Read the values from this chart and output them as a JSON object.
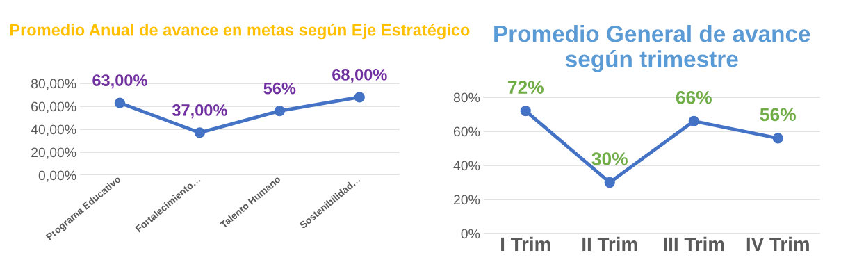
{
  "chart_data": [
    {
      "type": "line",
      "title": "Promedio Anual de avance en metas según Eje Estratégico",
      "categories": [
        "Programa Educativo",
        "Fortalecimiento…",
        "Talento Humano",
        "Sostenibilidad…"
      ],
      "series": [
        {
          "color": "#4472c4",
          "values": [
            63,
            37,
            56,
            68
          ],
          "value_labels": [
            "63,00%",
            "37,00%",
            "56%",
            "68,00%"
          ]
        }
      ],
      "ylim": [
        0,
        80
      ],
      "yticks": [
        {
          "value": 0,
          "label": "0,00%"
        },
        {
          "value": 20,
          "label": "20,00%"
        },
        {
          "value": 40,
          "label": "40,00%"
        },
        {
          "value": 60,
          "label": "60,00%"
        },
        {
          "value": 80,
          "label": "80,00%"
        }
      ],
      "grid": "y",
      "marker": "circle",
      "line_style": "solid"
    },
    {
      "type": "line",
      "title": "Promedio General de avance según trimestre",
      "categories": [
        "I Trim",
        "II Trim",
        "III Trim",
        "IV Trim"
      ],
      "series": [
        {
          "color": "#4472c4",
          "values": [
            72,
            30,
            66,
            56
          ],
          "value_labels": [
            "72%",
            "30%",
            "66%",
            "56%"
          ]
        }
      ],
      "ylim": [
        0,
        80
      ],
      "yticks": [
        {
          "value": 0,
          "label": "0%"
        },
        {
          "value": 20,
          "label": "20%"
        },
        {
          "value": 40,
          "label": "40%"
        },
        {
          "value": 60,
          "label": "60%"
        },
        {
          "value": 80,
          "label": "80%"
        }
      ],
      "grid": "y",
      "marker": "circle",
      "line_style": "solid"
    }
  ]
}
